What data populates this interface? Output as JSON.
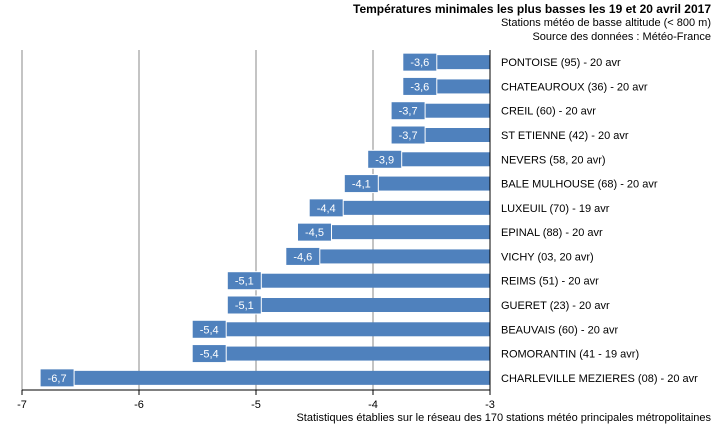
{
  "header": {
    "title": "Températures minimales les plus basses  les 19 et 20 avril 2017",
    "subtitle": "Stations météo de basse altitude (< 800 m)",
    "source": "Source des données : Météo-France"
  },
  "footnote": "Statistiques établies sur le réseau des 170 stations météo principales métropolitaines",
  "colors": {
    "bar": "#4f81bd",
    "label_box": "#4f81bd",
    "grid": "#888888",
    "axis": "#000000"
  },
  "chart_data": {
    "type": "bar",
    "orientation": "horizontal",
    "categories": [
      "PONTOISE (95) - 20 avr",
      "CHATEAUROUX (36) - 20 avr",
      "CREIL (60) - 20 avr",
      "ST ETIENNE (42) - 20 avr",
      "NEVERS (58, 20 avr)",
      "BALE MULHOUSE (68) - 20 avr",
      "LUXEUIL (70) - 19 avr",
      "EPINAL (88) - 20 avr",
      "VICHY (03, 20 avr)",
      "REIMS (51) - 20 avr",
      "GUERET (23) - 20 avr",
      "BEAUVAIS (60) - 20 avr",
      "ROMORANTIN (41 - 19 avr)",
      "CHARLEVILLE MEZIERES (08) - 20 avr"
    ],
    "values": [
      -3.6,
      -3.6,
      -3.7,
      -3.7,
      -3.9,
      -4.1,
      -4.4,
      -4.5,
      -4.6,
      -5.1,
      -5.1,
      -5.4,
      -5.4,
      -6.7
    ],
    "data_labels": [
      "-3,6",
      "-3,6",
      "-3,7",
      "-3,7",
      "-3,9",
      "-4,1",
      "-4,4",
      "-4,5",
      "-4,6",
      "-5,1",
      "-5,1",
      "-5,4",
      "-5,4",
      "-6,7"
    ],
    "xlim": [
      -7,
      -3
    ],
    "xticks": [
      -7,
      -6,
      -5,
      -4,
      -3
    ],
    "xtick_labels": [
      "-7",
      "-6",
      "-5",
      "-4",
      "-3"
    ],
    "grid": true,
    "legend": false
  }
}
